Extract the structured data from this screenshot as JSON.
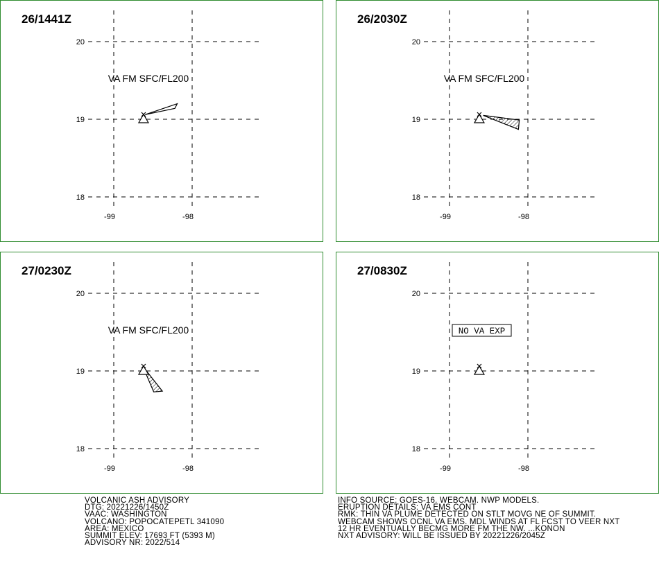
{
  "panels": [
    {
      "time": "26/1441Z",
      "label": "VA FM SFC/FL200",
      "label_boxed": false,
      "plume": [
        [
          -98.6,
          19.06
        ],
        [
          -98.19,
          19.2
        ],
        [
          -98.22,
          19.14
        ]
      ],
      "plume_hatched": false
    },
    {
      "time": "26/2030Z",
      "label": "VA FM SFC/FL200",
      "label_boxed": false,
      "plume": [
        [
          -98.57,
          19.05
        ],
        [
          -98.11,
          18.99
        ],
        [
          -98.12,
          18.87
        ]
      ],
      "plume_hatched": true
    },
    {
      "time": "27/0230Z",
      "label": "VA FM SFC/FL200",
      "label_boxed": false,
      "plume": [
        [
          -98.63,
          19.06
        ],
        [
          -98.38,
          18.74
        ],
        [
          -98.49,
          18.73
        ]
      ],
      "plume_hatched": true
    },
    {
      "time": "27/0830Z",
      "label": "NO VA EXP",
      "label_boxed": true,
      "plume": [],
      "plume_hatched": false
    }
  ],
  "grid": {
    "lat_ticks": [
      "20",
      "19",
      "18"
    ],
    "lon_ticks": [
      "-99",
      "-98"
    ],
    "lat_values": [
      20,
      19,
      18
    ],
    "lon_values": [
      -99,
      -98
    ]
  },
  "volcano_location": {
    "lon": -98.62,
    "lat": 19.0
  },
  "advisory_left": [
    "VOLCANIC ASH ADVISORY",
    "DTG: 20221226/1450Z",
    "VAAC: WASHINGTON",
    "VOLCANO: POPOCATEPETL 341090",
    "AREA: MEXICO",
    "SUMMIT ELEV: 17693 FT (5393 M)",
    "ADVISORY NR: 2022/514"
  ],
  "advisory_right": [
    "INFO SOURCE: GOES-16. WEBCAM. NWP MODELS.",
    "ERUPTION DETAILS: VA EMS CONT",
    "RMK: THIN VA PLUME DETECTED ON STLT MOVG NE OF SUMMIT.",
    "WEBCAM SHOWS OCNL VA EMS. MDL WINDS AT FL FCST TO VEER NXT",
    "12 HR EVENTUALLY BECMG MORE FM THE NW. ...KONON",
    "NXT ADVISORY: WILL BE ISSUED BY 20221226/2045Z"
  ],
  "colors": {
    "panel_border": "#2e8b2e",
    "grid": "#000000",
    "text": "#000000"
  }
}
